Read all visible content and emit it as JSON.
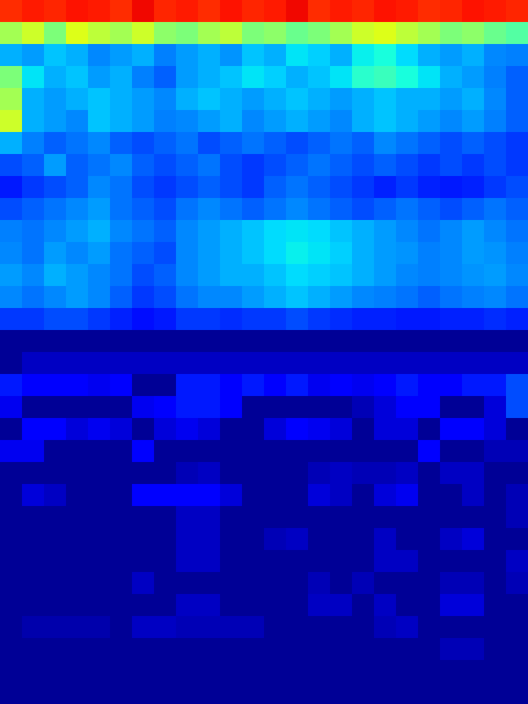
{
  "chart_data": {
    "type": "heatmap",
    "color": "jet",
    "tick_labels": false,
    "zlim": [
      0,
      1
    ],
    "cells": [
      [
        0.86,
        0.88,
        0.87,
        0.89,
        0.88,
        0.86,
        0.9,
        0.87,
        0.88,
        0.86,
        0.89,
        0.87,
        0.88,
        0.9,
        0.86,
        0.88,
        0.87,
        0.89,
        0.88,
        0.86,
        0.87,
        0.89,
        0.88,
        0.87
      ],
      [
        0.55,
        0.6,
        0.5,
        0.62,
        0.58,
        0.55,
        0.6,
        0.52,
        0.5,
        0.55,
        0.58,
        0.5,
        0.52,
        0.48,
        0.5,
        0.55,
        0.6,
        0.62,
        0.58,
        0.55,
        0.5,
        0.52,
        0.48,
        0.45
      ],
      [
        0.3,
        0.28,
        0.32,
        0.3,
        0.26,
        0.28,
        0.3,
        0.25,
        0.28,
        0.3,
        0.27,
        0.32,
        0.3,
        0.35,
        0.33,
        0.3,
        0.36,
        0.38,
        0.34,
        0.3,
        0.28,
        0.3,
        0.26,
        0.25
      ],
      [
        0.5,
        0.35,
        0.3,
        0.32,
        0.28,
        0.3,
        0.25,
        0.22,
        0.28,
        0.3,
        0.32,
        0.35,
        0.33,
        0.3,
        0.32,
        0.35,
        0.4,
        0.42,
        0.38,
        0.35,
        0.3,
        0.28,
        0.25,
        0.22
      ],
      [
        0.55,
        0.3,
        0.28,
        0.3,
        0.32,
        0.3,
        0.28,
        0.26,
        0.3,
        0.32,
        0.3,
        0.28,
        0.3,
        0.32,
        0.3,
        0.28,
        0.3,
        0.32,
        0.3,
        0.3,
        0.28,
        0.3,
        0.26,
        0.22
      ],
      [
        0.6,
        0.3,
        0.28,
        0.26,
        0.32,
        0.3,
        0.28,
        0.25,
        0.26,
        0.28,
        0.3,
        0.26,
        0.28,
        0.3,
        0.28,
        0.26,
        0.3,
        0.32,
        0.3,
        0.28,
        0.26,
        0.28,
        0.25,
        0.22
      ],
      [
        0.3,
        0.25,
        0.22,
        0.24,
        0.26,
        0.22,
        0.2,
        0.22,
        0.24,
        0.2,
        0.22,
        0.24,
        0.22,
        0.2,
        0.22,
        0.24,
        0.22,
        0.26,
        0.24,
        0.22,
        0.2,
        0.22,
        0.2,
        0.18
      ],
      [
        0.2,
        0.22,
        0.28,
        0.22,
        0.24,
        0.26,
        0.22,
        0.2,
        0.22,
        0.24,
        0.2,
        0.18,
        0.2,
        0.22,
        0.24,
        0.22,
        0.2,
        0.22,
        0.2,
        0.18,
        0.2,
        0.18,
        0.2,
        0.18
      ],
      [
        0.15,
        0.18,
        0.2,
        0.22,
        0.26,
        0.24,
        0.2,
        0.18,
        0.2,
        0.22,
        0.2,
        0.18,
        0.22,
        0.24,
        0.22,
        0.2,
        0.18,
        0.16,
        0.18,
        0.16,
        0.15,
        0.16,
        0.18,
        0.2
      ],
      [
        0.2,
        0.22,
        0.24,
        0.26,
        0.28,
        0.24,
        0.22,
        0.2,
        0.24,
        0.26,
        0.24,
        0.22,
        0.24,
        0.26,
        0.24,
        0.22,
        0.2,
        0.22,
        0.24,
        0.22,
        0.2,
        0.22,
        0.24,
        0.22
      ],
      [
        0.25,
        0.24,
        0.26,
        0.28,
        0.3,
        0.26,
        0.24,
        0.22,
        0.26,
        0.28,
        0.3,
        0.32,
        0.34,
        0.35,
        0.34,
        0.32,
        0.3,
        0.28,
        0.26,
        0.24,
        0.26,
        0.28,
        0.26,
        0.24
      ],
      [
        0.26,
        0.24,
        0.28,
        0.26,
        0.28,
        0.24,
        0.22,
        0.2,
        0.26,
        0.28,
        0.3,
        0.32,
        0.34,
        0.36,
        0.35,
        0.33,
        0.3,
        0.28,
        0.27,
        0.25,
        0.26,
        0.28,
        0.27,
        0.25
      ],
      [
        0.28,
        0.26,
        0.3,
        0.28,
        0.26,
        0.24,
        0.2,
        0.22,
        0.26,
        0.28,
        0.3,
        0.3,
        0.32,
        0.34,
        0.33,
        0.32,
        0.3,
        0.28,
        0.26,
        0.25,
        0.26,
        0.27,
        0.28,
        0.26
      ],
      [
        0.26,
        0.24,
        0.26,
        0.28,
        0.26,
        0.22,
        0.18,
        0.2,
        0.24,
        0.26,
        0.26,
        0.28,
        0.3,
        0.32,
        0.3,
        0.28,
        0.26,
        0.25,
        0.24,
        0.22,
        0.24,
        0.25,
        0.26,
        0.24
      ],
      [
        0.18,
        0.18,
        0.2,
        0.2,
        0.18,
        0.16,
        0.14,
        0.15,
        0.18,
        0.18,
        0.17,
        0.18,
        0.18,
        0.2,
        0.18,
        0.17,
        0.16,
        0.16,
        0.15,
        0.15,
        0.16,
        0.16,
        0.17,
        0.16
      ],
      [
        0.02,
        0.02,
        0.02,
        0.02,
        0.02,
        0.02,
        0.02,
        0.02,
        0.02,
        0.02,
        0.02,
        0.02,
        0.02,
        0.02,
        0.02,
        0.02,
        0.02,
        0.02,
        0.02,
        0.02,
        0.02,
        0.02,
        0.02,
        0.02
      ],
      [
        0.02,
        0.06,
        0.06,
        0.06,
        0.06,
        0.06,
        0.06,
        0.06,
        0.06,
        0.06,
        0.06,
        0.06,
        0.06,
        0.06,
        0.06,
        0.06,
        0.06,
        0.06,
        0.06,
        0.06,
        0.06,
        0.06,
        0.06,
        0.06
      ],
      [
        0.15,
        0.12,
        0.12,
        0.12,
        0.1,
        0.12,
        0.02,
        0.02,
        0.15,
        0.15,
        0.12,
        0.15,
        0.12,
        0.15,
        0.1,
        0.12,
        0.1,
        0.12,
        0.15,
        0.12,
        0.12,
        0.15,
        0.15,
        0.2
      ],
      [
        0.1,
        0.02,
        0.02,
        0.02,
        0.02,
        0.02,
        0.1,
        0.12,
        0.15,
        0.15,
        0.12,
        0.02,
        0.02,
        0.02,
        0.02,
        0.02,
        0.05,
        0.08,
        0.12,
        0.12,
        0.02,
        0.02,
        0.08,
        0.2
      ],
      [
        0.02,
        0.12,
        0.12,
        0.08,
        0.1,
        0.08,
        0.02,
        0.08,
        0.1,
        0.08,
        0.02,
        0.02,
        0.08,
        0.12,
        0.1,
        0.08,
        0.02,
        0.08,
        0.08,
        0.02,
        0.12,
        0.12,
        0.08,
        0.02
      ],
      [
        0.1,
        0.1,
        0.02,
        0.02,
        0.02,
        0.02,
        0.12,
        0.02,
        0.02,
        0.02,
        0.02,
        0.02,
        0.02,
        0.02,
        0.02,
        0.02,
        0.02,
        0.02,
        0.02,
        0.12,
        0.02,
        0.02,
        0.05,
        0.05
      ],
      [
        0.02,
        0.02,
        0.02,
        0.02,
        0.02,
        0.02,
        0.02,
        0.02,
        0.05,
        0.06,
        0.02,
        0.02,
        0.02,
        0.02,
        0.05,
        0.06,
        0.05,
        0.05,
        0.06,
        0.02,
        0.06,
        0.06,
        0.02,
        0.02
      ],
      [
        0.02,
        0.08,
        0.06,
        0.02,
        0.02,
        0.02,
        0.12,
        0.12,
        0.12,
        0.12,
        0.08,
        0.02,
        0.02,
        0.02,
        0.08,
        0.06,
        0.02,
        0.08,
        0.1,
        0.02,
        0.02,
        0.06,
        0.02,
        0.05
      ],
      [
        0.02,
        0.02,
        0.02,
        0.02,
        0.02,
        0.02,
        0.02,
        0.02,
        0.06,
        0.06,
        0.02,
        0.02,
        0.02,
        0.02,
        0.02,
        0.02,
        0.02,
        0.02,
        0.02,
        0.02,
        0.02,
        0.02,
        0.02,
        0.05
      ],
      [
        0.02,
        0.02,
        0.02,
        0.02,
        0.02,
        0.02,
        0.02,
        0.02,
        0.06,
        0.06,
        0.02,
        0.02,
        0.05,
        0.06,
        0.02,
        0.02,
        0.02,
        0.06,
        0.02,
        0.02,
        0.06,
        0.08,
        0.02,
        0.02
      ],
      [
        0.02,
        0.02,
        0.02,
        0.02,
        0.02,
        0.02,
        0.02,
        0.02,
        0.06,
        0.06,
        0.02,
        0.02,
        0.02,
        0.02,
        0.02,
        0.02,
        0.02,
        0.06,
        0.06,
        0.02,
        0.02,
        0.02,
        0.02,
        0.06
      ],
      [
        0.02,
        0.02,
        0.02,
        0.02,
        0.02,
        0.02,
        0.06,
        0.02,
        0.02,
        0.02,
        0.02,
        0.02,
        0.02,
        0.02,
        0.05,
        0.02,
        0.05,
        0.02,
        0.02,
        0.02,
        0.05,
        0.05,
        0.02,
        0.05
      ],
      [
        0.02,
        0.02,
        0.02,
        0.02,
        0.02,
        0.02,
        0.02,
        0.02,
        0.06,
        0.06,
        0.02,
        0.02,
        0.02,
        0.02,
        0.06,
        0.06,
        0.02,
        0.06,
        0.02,
        0.02,
        0.08,
        0.08,
        0.02,
        0.02
      ],
      [
        0.02,
        0.04,
        0.04,
        0.04,
        0.04,
        0.02,
        0.06,
        0.06,
        0.05,
        0.05,
        0.05,
        0.05,
        0.02,
        0.02,
        0.02,
        0.02,
        0.02,
        0.05,
        0.06,
        0.02,
        0.02,
        0.02,
        0.02,
        0.02
      ],
      [
        0.02,
        0.02,
        0.02,
        0.02,
        0.02,
        0.02,
        0.02,
        0.02,
        0.02,
        0.02,
        0.02,
        0.02,
        0.02,
        0.02,
        0.02,
        0.02,
        0.02,
        0.02,
        0.02,
        0.02,
        0.05,
        0.05,
        0.02,
        0.02
      ],
      [
        0.02,
        0.02,
        0.02,
        0.02,
        0.02,
        0.02,
        0.02,
        0.02,
        0.02,
        0.02,
        0.02,
        0.02,
        0.02,
        0.02,
        0.02,
        0.02,
        0.02,
        0.02,
        0.02,
        0.02,
        0.02,
        0.02,
        0.02,
        0.02
      ],
      [
        0.02,
        0.02,
        0.02,
        0.02,
        0.02,
        0.02,
        0.02,
        0.02,
        0.02,
        0.02,
        0.02,
        0.02,
        0.02,
        0.02,
        0.02,
        0.02,
        0.02,
        0.02,
        0.02,
        0.02,
        0.02,
        0.02,
        0.02,
        0.02
      ]
    ]
  }
}
